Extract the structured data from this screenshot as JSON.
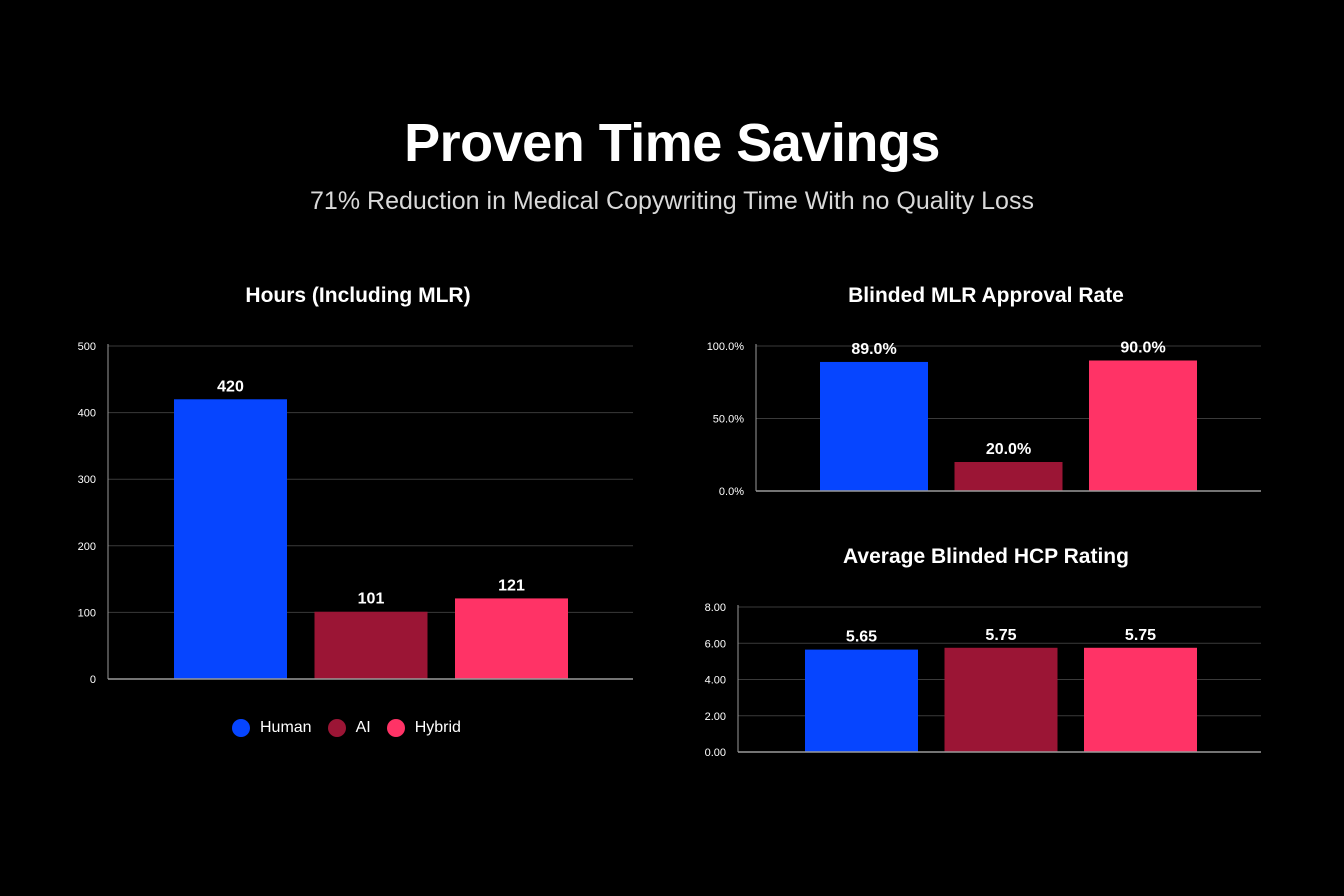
{
  "header": {
    "title": "Proven Time Savings",
    "subtitle": "71% Reduction in Medical Copywriting Time With no Quality Loss"
  },
  "colors": {
    "background": "#000000",
    "human": "#0645ff",
    "ai": "#9b1535",
    "hybrid": "#ff3366",
    "grid": "#3a3a3a",
    "axis": "#9a9a9a"
  },
  "legend": {
    "items": [
      {
        "label": "Human",
        "color": "#0645ff"
      },
      {
        "label": "AI",
        "color": "#9b1535"
      },
      {
        "label": "Hybrid",
        "color": "#ff3366"
      }
    ]
  },
  "chart_data": [
    {
      "type": "bar",
      "title": "Hours (Including MLR)",
      "categories": [
        "Human",
        "AI",
        "Hybrid"
      ],
      "values": [
        420,
        101,
        121
      ],
      "value_labels": [
        "420",
        "101",
        "121"
      ],
      "colors": [
        "#0645ff",
        "#9b1535",
        "#ff3366"
      ],
      "ylim": [
        0,
        500
      ],
      "yticks": [
        0,
        100,
        200,
        300,
        400,
        500
      ],
      "ytick_labels": [
        "0",
        "100",
        "200",
        "300",
        "400",
        "500"
      ],
      "grid": true,
      "legend": "bottom"
    },
    {
      "type": "bar",
      "title": "Blinded MLR Approval Rate",
      "categories": [
        "Human",
        "AI",
        "Hybrid"
      ],
      "values": [
        89.0,
        20.0,
        90.0
      ],
      "value_labels": [
        "89.0%",
        "20.0%",
        "90.0%"
      ],
      "colors": [
        "#0645ff",
        "#9b1535",
        "#ff3366"
      ],
      "ylim": [
        0,
        100
      ],
      "yticks": [
        0,
        50,
        100
      ],
      "ytick_labels": [
        "0.0%",
        "50.0%",
        "100.0%"
      ],
      "grid": true
    },
    {
      "type": "bar",
      "title": "Average Blinded HCP Rating",
      "categories": [
        "Human",
        "AI",
        "Hybrid"
      ],
      "values": [
        5.65,
        5.75,
        5.75
      ],
      "value_labels": [
        "5.65",
        "5.75",
        "5.75"
      ],
      "colors": [
        "#0645ff",
        "#9b1535",
        "#ff3366"
      ],
      "ylim": [
        0,
        8
      ],
      "yticks": [
        0,
        2,
        4,
        6,
        8
      ],
      "ytick_labels": [
        "0.00",
        "2.00",
        "4.00",
        "6.00",
        "8.00"
      ],
      "grid": true
    }
  ]
}
